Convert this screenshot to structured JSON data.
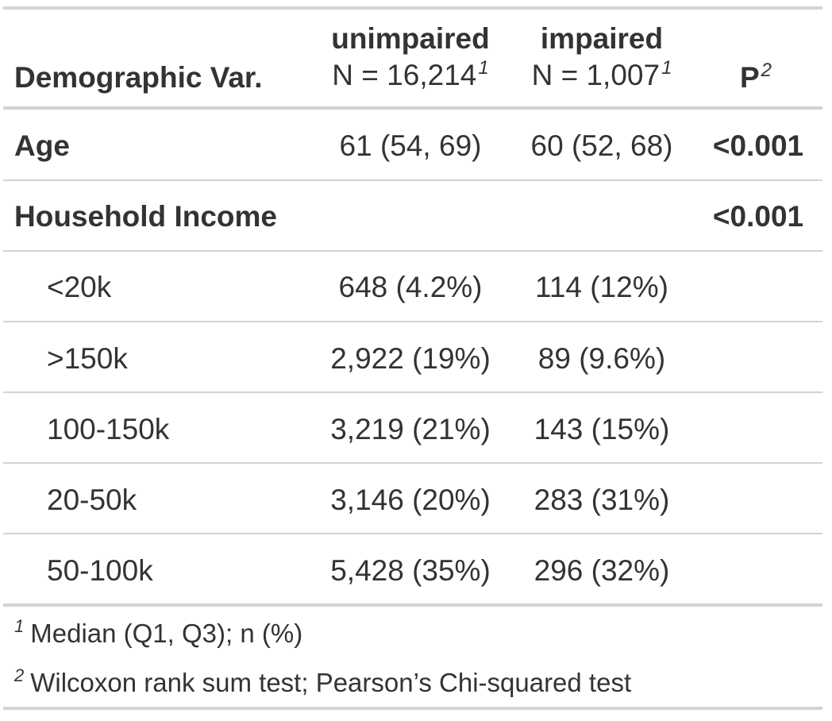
{
  "header": {
    "label_col": "Demographic Var.",
    "unimpaired_name": "unimpaired",
    "unimpaired_n": "N = 16,214",
    "unimpaired_mark": "1",
    "impaired_name": "impaired",
    "impaired_n": "N = 1,007",
    "impaired_mark": "1",
    "p_label": "P",
    "p_mark": "2"
  },
  "rows": [
    {
      "label": "Age",
      "unimpaired": "61 (54, 69)",
      "impaired": "60 (52, 68)",
      "p": "<0.001"
    },
    {
      "label": "Household Income",
      "unimpaired": "",
      "impaired": "",
      "p": "<0.001"
    },
    {
      "label": "<20k",
      "unimpaired": "648 (4.2%)",
      "impaired": "114 (12%)",
      "p": ""
    },
    {
      "label": ">150k",
      "unimpaired": "2,922 (19%)",
      "impaired": "89 (9.6%)",
      "p": ""
    },
    {
      "label": "100-150k",
      "unimpaired": "3,219 (21%)",
      "impaired": "143 (15%)",
      "p": ""
    },
    {
      "label": "20-50k",
      "unimpaired": "3,146 (20%)",
      "impaired": "283 (31%)",
      "p": ""
    },
    {
      "label": "50-100k",
      "unimpaired": "5,428 (35%)",
      "impaired": "296 (32%)",
      "p": ""
    }
  ],
  "footnotes": [
    {
      "mark": "1",
      "text": "Median (Q1, Q3); n (%)"
    },
    {
      "mark": "2",
      "text": "Wilcoxon rank sum test; Pearson’s Chi-squared test"
    }
  ]
}
